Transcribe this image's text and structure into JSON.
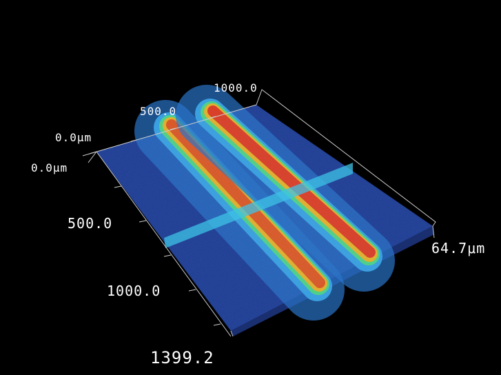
{
  "axes": {
    "y_axis_labels": [
      "0.0μm",
      "500.0",
      "1000.0"
    ],
    "x_axis_labels": [
      "0.0μm",
      "500.0",
      "1000.0",
      "1399.2"
    ],
    "z_axis_label": "64.7μm"
  },
  "colors": {
    "background": "#000000",
    "base": "#1f3f96",
    "ridge_peak": "#d8402a",
    "cross_section": "#3ec3e6"
  }
}
